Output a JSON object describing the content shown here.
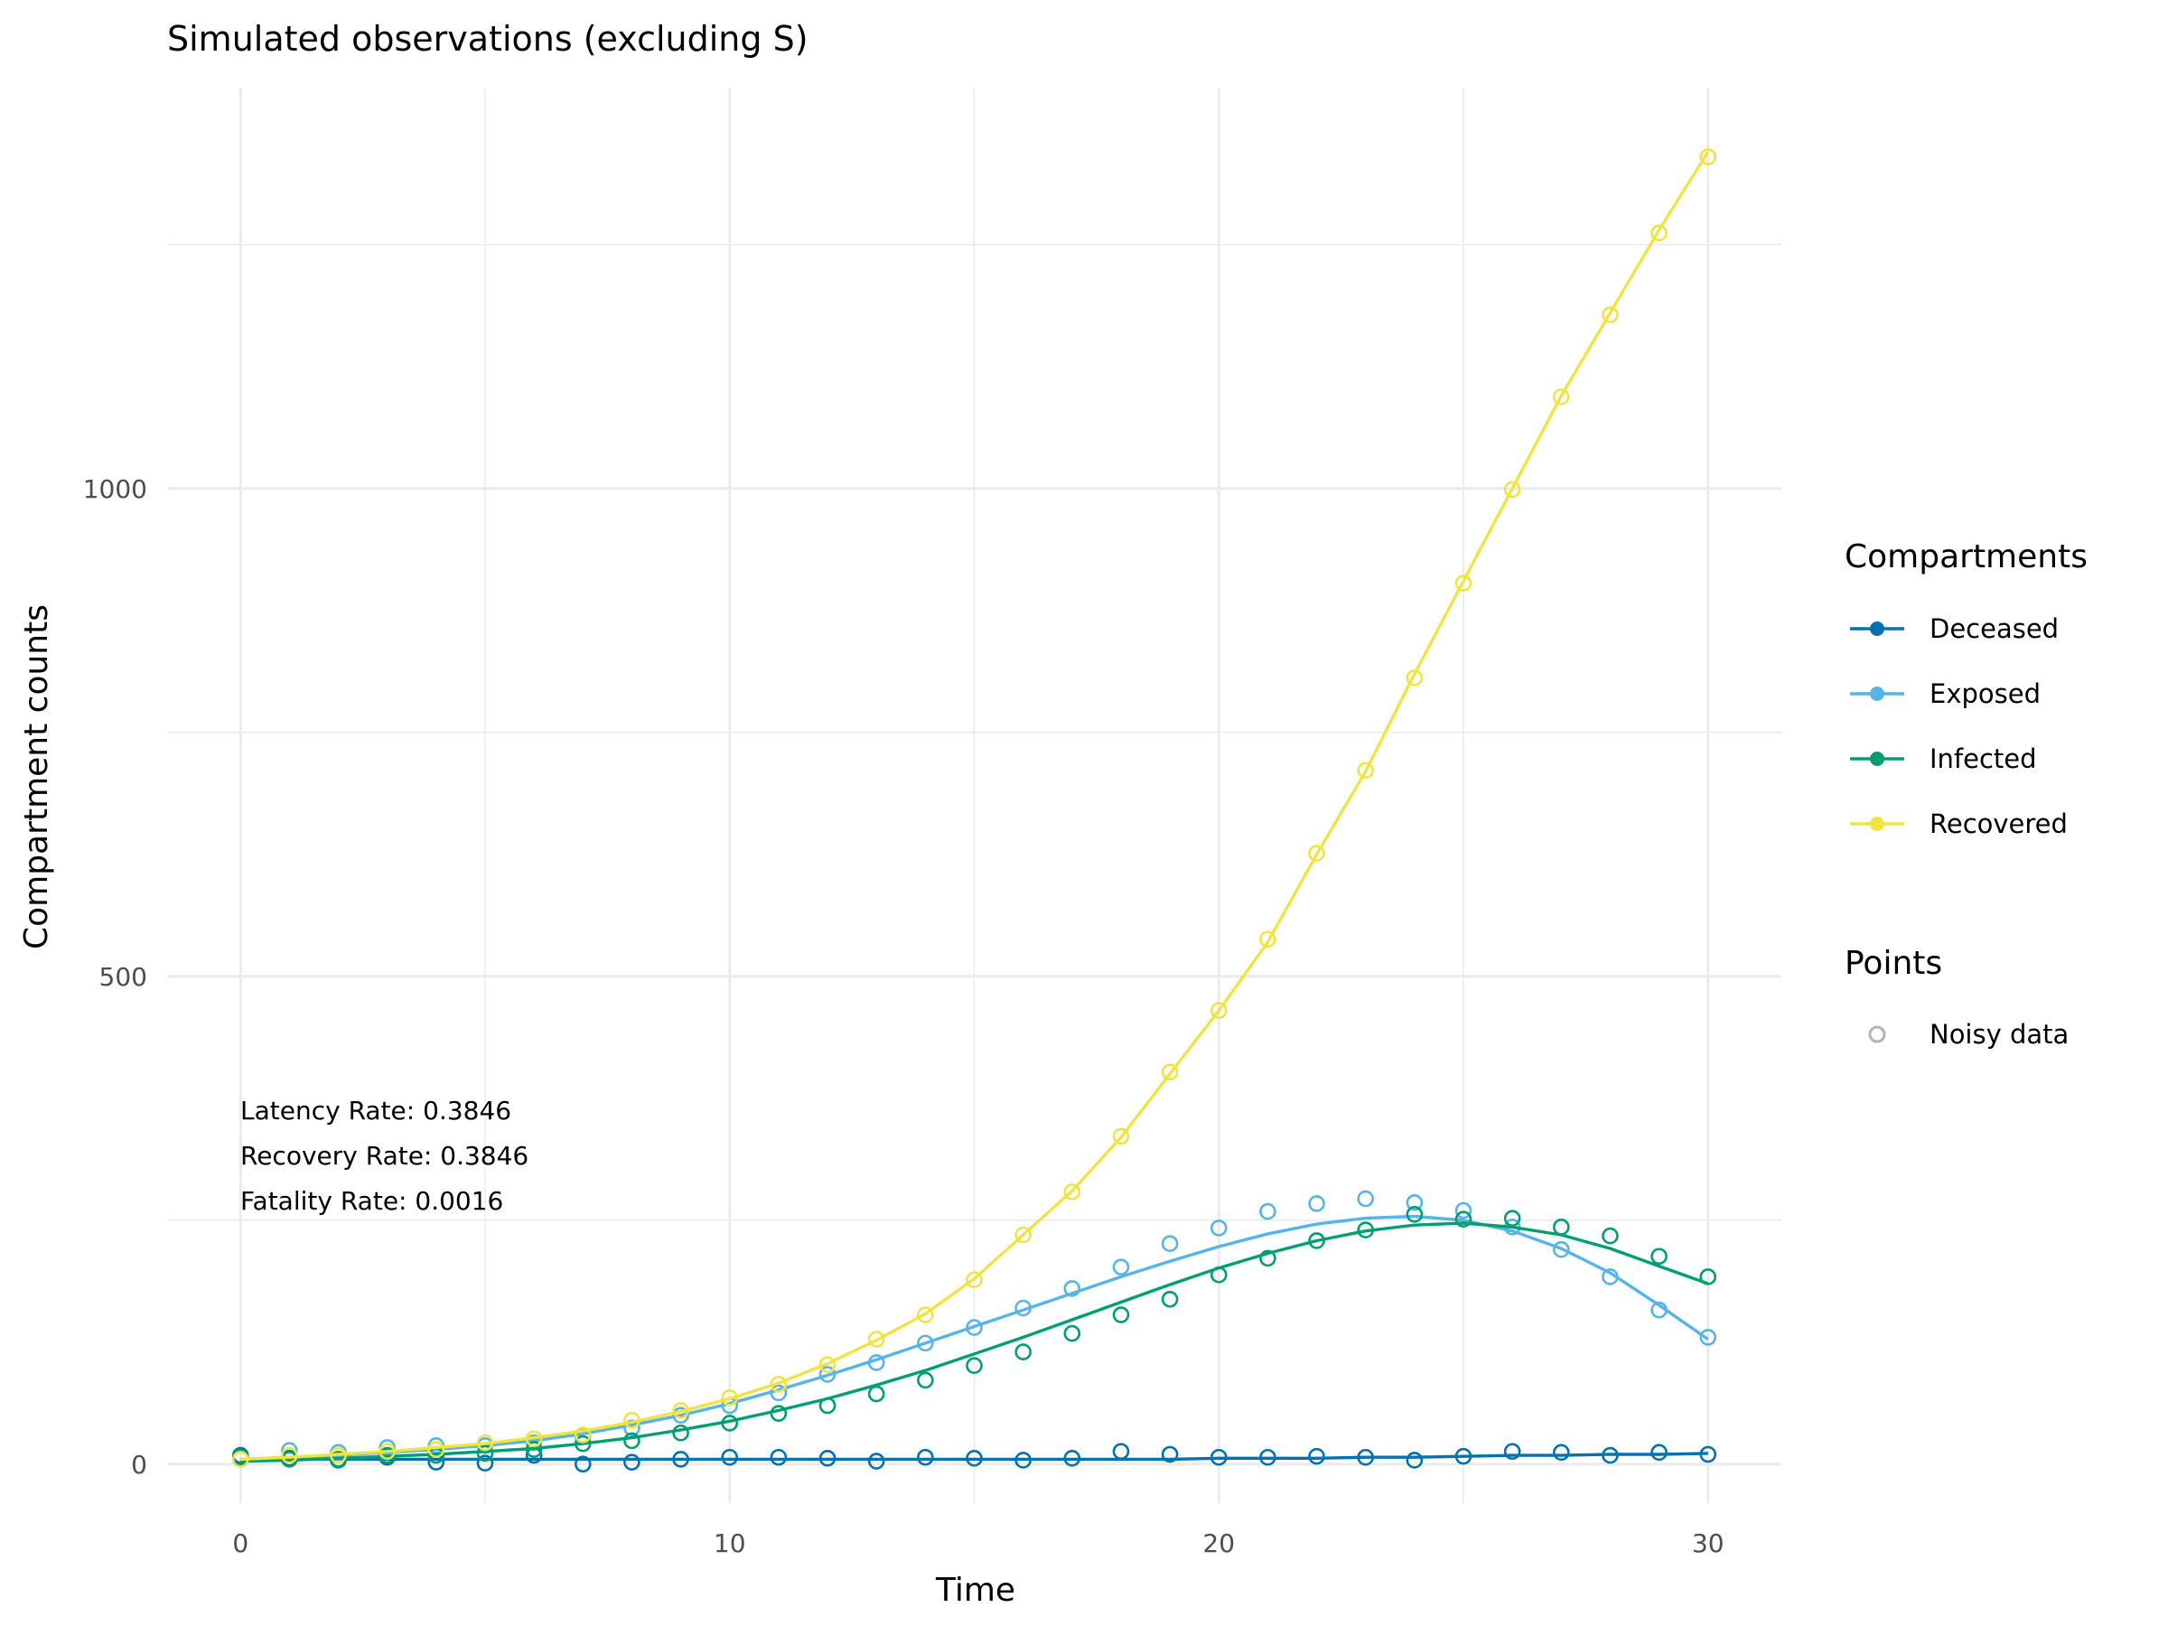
{
  "chart_data": {
    "type": "line",
    "title": "Simulated observations (excluding S)",
    "xlabel": "Time",
    "ylabel": "Compartment counts",
    "xlim": [
      -1.5,
      31.5
    ],
    "ylim": [
      -40,
      1410
    ],
    "x_ticks": [
      0,
      10,
      20,
      30
    ],
    "x_tick_labels": [
      "0",
      "10",
      "20",
      "30"
    ],
    "y_ticks": [
      0,
      500,
      1000
    ],
    "y_tick_labels": [
      "0",
      "500",
      "1000"
    ],
    "grid": true,
    "legend_position": "right",
    "legend": {
      "lines_title": "Compartments",
      "points_title": "Points",
      "points_label": "Noisy data"
    },
    "annotations": [
      "Latency Rate: 0.3846",
      "Recovery Rate: 0.3846",
      "Fatality Rate: 0.0016"
    ],
    "x": [
      0,
      1,
      2,
      3,
      4,
      5,
      6,
      7,
      8,
      9,
      10,
      11,
      12,
      13,
      14,
      15,
      16,
      17,
      18,
      19,
      20,
      21,
      22,
      23,
      24,
      25,
      26,
      27,
      28,
      29,
      30
    ],
    "series": [
      {
        "name": "Deceased",
        "color": "#0072B2",
        "line": [
          5,
          5,
          5,
          5,
          5,
          5,
          5,
          5,
          5,
          5,
          5,
          5,
          5,
          5,
          5,
          5,
          5,
          5,
          5,
          5,
          6,
          6,
          6,
          7,
          7,
          8,
          9,
          9,
          10,
          10,
          11
        ],
        "points": [
          9,
          6,
          4,
          7,
          2,
          1,
          9,
          0,
          2,
          5,
          7,
          7,
          6,
          3,
          7,
          6,
          4,
          6,
          13,
          10,
          7,
          7,
          8,
          7,
          4,
          8,
          13,
          12,
          9,
          12,
          10
        ]
      },
      {
        "name": "Exposed",
        "color": "#56B4E9",
        "line": [
          5,
          7,
          9,
          12,
          15,
          19,
          24,
          31,
          40,
          50,
          62,
          76,
          91,
          107,
          124,
          141,
          158,
          175,
          192,
          208,
          223,
          236,
          246,
          252,
          254,
          250,
          239,
          221,
          196,
          163,
          128
        ],
        "points": [
          5,
          14,
          12,
          17,
          19,
          19,
          22,
          28,
          37,
          50,
          60,
          73,
          92,
          104,
          124,
          140,
          160,
          180,
          202,
          226,
          242,
          259,
          267,
          272,
          268,
          260,
          243,
          220,
          192,
          158,
          130
        ]
      },
      {
        "name": "Infected",
        "color": "#009E73",
        "line": [
          3,
          4,
          6,
          8,
          10,
          13,
          16,
          21,
          27,
          35,
          44,
          55,
          67,
          81,
          96,
          113,
          130,
          148,
          166,
          184,
          201,
          216,
          229,
          239,
          245,
          247,
          243,
          235,
          221,
          203,
          185
        ],
        "points": [
          7,
          5,
          5,
          9,
          9,
          11,
          15,
          21,
          24,
          32,
          42,
          52,
          60,
          72,
          86,
          101,
          115,
          134,
          153,
          169,
          194,
          211,
          229,
          240,
          256,
          251,
          252,
          243,
          234,
          213,
          192
        ]
      },
      {
        "name": "Recovered",
        "color": "#F0E442",
        "line": [
          5,
          7,
          10,
          13,
          17,
          21,
          27,
          34,
          43,
          54,
          67,
          83,
          103,
          127,
          154,
          190,
          235,
          280,
          335,
          400,
          465,
          535,
          625,
          710,
          810,
          905,
          1000,
          1095,
          1180,
          1265,
          1345
        ],
        "points": [
          5,
          9,
          9,
          13,
          15,
          22,
          26,
          30,
          45,
          55,
          68,
          82,
          102,
          128,
          153,
          189,
          235,
          279,
          336,
          402,
          465,
          538,
          626,
          711,
          806,
          903,
          999,
          1094,
          1178,
          1262,
          1340
        ]
      }
    ]
  }
}
